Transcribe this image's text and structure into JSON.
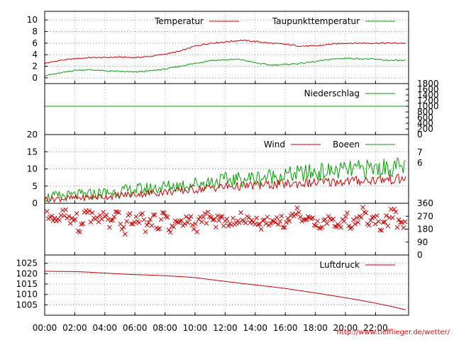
{
  "footer_link": "http://www.tiefflieger.de/wetter/",
  "x_axis": {
    "ticks": [
      "00:00",
      "02:00",
      "04:00",
      "06:00",
      "08:00",
      "10:00",
      "12:00",
      "14:00",
      "16:00",
      "18:00",
      "20:00",
      "22:00"
    ],
    "range_hours": [
      0,
      24.2
    ]
  },
  "chart_data": [
    {
      "type": "line",
      "panel": "temperature",
      "ylim": [
        -1,
        11.5
      ],
      "yticks": [
        "0",
        "2",
        "4",
        "6",
        "8",
        "10"
      ],
      "grid": true,
      "legend_placement": "top-right",
      "colors": {
        "Temperatur": "#cc0000",
        "Taupunkttemperatur": "#00a000"
      },
      "series": [
        {
          "name": "Temperatur",
          "x": [
            0,
            1,
            2,
            3,
            4,
            5,
            6,
            7,
            8,
            9,
            10,
            11,
            12,
            13,
            14,
            15,
            16,
            17,
            18,
            19,
            20,
            21,
            22,
            23,
            24
          ],
          "y": [
            2.5,
            3.0,
            3.3,
            3.5,
            3.5,
            3.6,
            3.5,
            3.7,
            4.1,
            4.6,
            5.5,
            6.0,
            6.2,
            6.5,
            6.3,
            6.0,
            5.8,
            5.5,
            5.5,
            5.8,
            6.0,
            6.0,
            6.0,
            6.0,
            6.0
          ]
        },
        {
          "name": "Taupunkttemperatur",
          "x": [
            0,
            1,
            2,
            3,
            4,
            5,
            6,
            7,
            8,
            9,
            10,
            11,
            12,
            13,
            14,
            15,
            16,
            17,
            18,
            19,
            20,
            21,
            22,
            23,
            24
          ],
          "y": [
            0.4,
            0.8,
            1.3,
            1.4,
            1.2,
            1.1,
            1.0,
            1.2,
            1.5,
            2.0,
            2.5,
            3.0,
            3.1,
            3.2,
            2.6,
            2.2,
            2.3,
            2.5,
            2.8,
            3.2,
            3.4,
            3.3,
            3.2,
            3.0,
            3.0
          ]
        }
      ]
    },
    {
      "type": "line",
      "panel": "precipitation",
      "ylim": [
        0,
        1800
      ],
      "yticks": [
        "0",
        "200",
        "400",
        "600",
        "800",
        "1000",
        "1200",
        "1400",
        "1600",
        "1800"
      ],
      "legend_placement": "top-right",
      "colors": {
        "Niederschlag": "#00a000"
      },
      "series": [
        {
          "name": "Niederschlag",
          "x": [
            0,
            24.2
          ],
          "y": [
            1000,
            1000
          ]
        }
      ]
    },
    {
      "type": "line",
      "panel": "wind",
      "ylim": [
        0,
        20
      ],
      "yticks": [
        "0",
        "5",
        "10",
        "15",
        "20"
      ],
      "right_labels": [
        "7",
        "6"
      ],
      "grid": true,
      "legend_placement": "top-right",
      "colors": {
        "Wind": "#cc0000",
        "Boeen": "#00a000"
      },
      "series": [
        {
          "name": "Wind",
          "x": [
            0,
            1,
            2,
            3,
            4,
            5,
            6,
            7,
            8,
            9,
            10,
            11,
            12,
            13,
            14,
            15,
            16,
            17,
            18,
            19,
            20,
            21,
            22,
            23,
            24
          ],
          "y": [
            1.2,
            1.4,
            1.5,
            1.7,
            2.0,
            2.3,
            2.7,
            3.0,
            3.3,
            3.6,
            4.0,
            4.5,
            4.8,
            5.0,
            5.2,
            5.4,
            5.6,
            5.8,
            6.0,
            6.2,
            6.4,
            6.6,
            6.8,
            7.0,
            7.0
          ]
        },
        {
          "name": "Boeen",
          "x": [
            0,
            1,
            2,
            3,
            4,
            5,
            6,
            7,
            8,
            9,
            10,
            11,
            12,
            13,
            14,
            15,
            16,
            17,
            18,
            19,
            20,
            21,
            22,
            23,
            24
          ],
          "y": [
            1.8,
            2.0,
            2.3,
            2.6,
            3.0,
            3.4,
            3.9,
            4.3,
            4.8,
            5.2,
            5.7,
            6.2,
            6.7,
            7.0,
            7.4,
            7.8,
            8.2,
            8.6,
            9.0,
            9.3,
            9.6,
            9.9,
            10.2,
            10.5,
            10.5
          ]
        }
      ]
    },
    {
      "type": "scatter",
      "panel": "wind_direction",
      "ylim": [
        0,
        360
      ],
      "right_labels": [
        "360",
        "270",
        "180",
        "90",
        "0"
      ],
      "colors": {
        "points": "#cc0000"
      },
      "series": [
        {
          "name": "",
          "x": [
            0.3,
            0.6,
            1.0,
            1.4,
            1.8,
            2.2,
            2.6,
            3.0,
            3.4,
            3.8,
            4.2,
            4.6,
            5.0,
            5.4,
            5.8,
            6.2,
            6.6,
            7.0,
            7.4,
            7.8,
            8.2,
            8.6,
            9.0,
            9.4,
            9.8,
            10.2,
            10.6,
            11.0,
            11.4,
            11.8,
            12.2,
            12.6,
            13.0,
            13.4,
            13.8,
            14.2,
            14.6,
            15.0,
            15.4,
            15.8,
            16.2,
            16.6,
            17.0,
            17.4,
            17.8,
            18.2,
            18.6,
            19.0,
            19.4,
            19.8,
            20.2,
            20.6,
            21.0,
            21.4,
            21.8,
            22.2,
            22.6,
            23.0,
            23.4,
            23.8,
            24.0
          ],
          "y": [
            270,
            250,
            290,
            230,
            270,
            200,
            300,
            260,
            240,
            280,
            220,
            270,
            180,
            250,
            230,
            260,
            200,
            240,
            220,
            270,
            190,
            230,
            210,
            250,
            200,
            240,
            260,
            230,
            250,
            210,
            240,
            220,
            260,
            230,
            250,
            210,
            240,
            230,
            250,
            220,
            270,
            300,
            250,
            230,
            240,
            220,
            250,
            230,
            200,
            260,
            220,
            240,
            300,
            230,
            250,
            210,
            240,
            280,
            220,
            200,
            190
          ]
        }
      ]
    },
    {
      "type": "line",
      "panel": "pressure",
      "ylim": [
        1000,
        1029
      ],
      "yticks": [
        "1005",
        "1010",
        "1015",
        "1020",
        "1025"
      ],
      "grid": true,
      "legend_placement": "top-right",
      "colors": {
        "Luftdruck": "#cc0000"
      },
      "series": [
        {
          "name": "Luftdruck",
          "x": [
            0,
            1,
            2,
            3,
            4,
            5,
            6,
            7,
            8,
            9,
            10,
            11,
            12,
            13,
            14,
            15,
            16,
            17,
            18,
            19,
            20,
            21,
            22,
            23,
            24
          ],
          "y": [
            1021.2,
            1021.1,
            1021.0,
            1020.7,
            1020.3,
            1019.9,
            1019.6,
            1019.3,
            1019.0,
            1018.6,
            1018.1,
            1017.2,
            1016.3,
            1015.4,
            1014.6,
            1013.8,
            1012.9,
            1011.8,
            1010.7,
            1009.6,
            1008.4,
            1007.2,
            1005.8,
            1004.3,
            1002.6
          ]
        }
      ]
    }
  ]
}
